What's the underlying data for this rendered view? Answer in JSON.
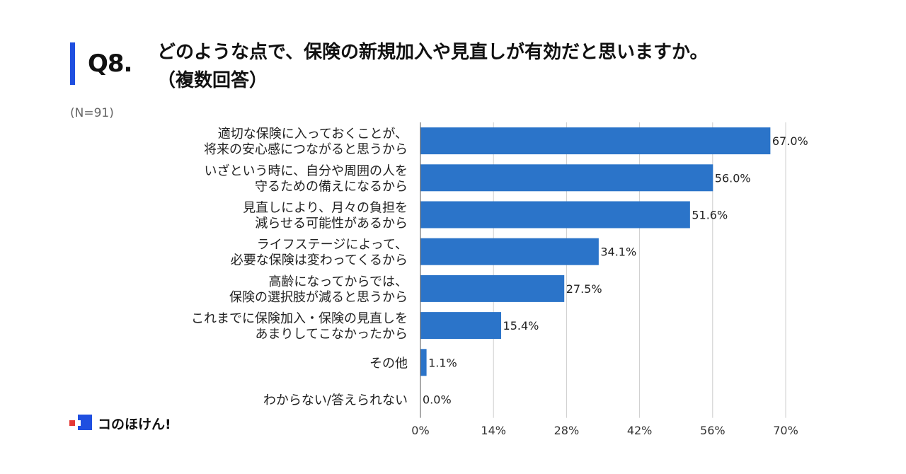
{
  "header": {
    "qnum": "Q8.",
    "question_line1": "どのような点で、保険の新規加入や見直しが有効だと思いますか。",
    "question_line2": "（複数回答）",
    "sample": "(N=91)"
  },
  "logo": {
    "text": "コのほけん!"
  },
  "colors": {
    "bar": "#2b74c9",
    "accent": "#1f4fe0",
    "grid": "#cccccc"
  },
  "chart_data": {
    "type": "bar",
    "orientation": "horizontal",
    "title": "どのような点で、保険の新規加入や見直しが有効だと思いますか。（複数回答）",
    "categories": [
      [
        "適切な保険に入っておくことが、",
        "将来の安心感につながると思うから"
      ],
      [
        "いざという時に、自分や周囲の人を",
        "守るための備えになるから"
      ],
      [
        "見直しにより、月々の負担を",
        "減らせる可能性があるから"
      ],
      [
        "ライフステージによって、",
        "必要な保険は変わってくるから"
      ],
      [
        "高齢になってからでは、",
        "保険の選択肢が減ると思うから"
      ],
      [
        "これまでに保険加入・保険の見直しを",
        "あまりしてこなかったから"
      ],
      [
        "その他"
      ],
      [
        "わからない/答えられない"
      ]
    ],
    "values": [
      67.0,
      56.0,
      51.6,
      34.1,
      27.5,
      15.4,
      1.1,
      0.0
    ],
    "value_labels": [
      "67.0%",
      "56.0%",
      "51.6%",
      "34.1%",
      "27.5%",
      "15.4%",
      "1.1%",
      "0.0%"
    ],
    "xlim": [
      0,
      70
    ],
    "xticks": [
      0,
      14,
      28,
      42,
      56,
      70
    ],
    "xtick_labels": [
      "0%",
      "14%",
      "28%",
      "42%",
      "56%",
      "70%"
    ],
    "xlabel": "",
    "ylabel": "",
    "grid": true,
    "legend": "none"
  }
}
